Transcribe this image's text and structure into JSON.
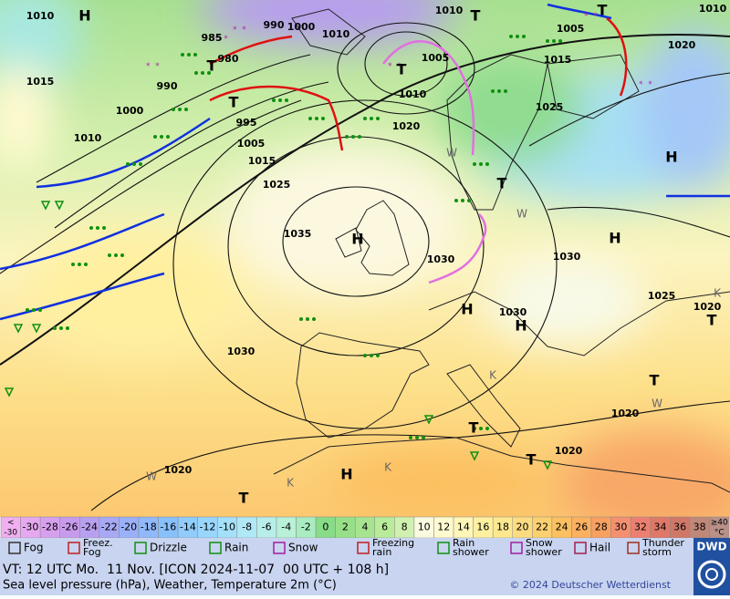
{
  "map": {
    "isobars": [
      1010,
      1010,
      1010,
      1005,
      985,
      990,
      1000,
      1010,
      980,
      990,
      1000,
      1015,
      1010,
      995,
      1005,
      1015,
      1025,
      1005,
      1010,
      1015,
      1020,
      1025,
      1020,
      1035,
      1030,
      1030,
      1025,
      1020,
      1030,
      1030,
      1020,
      1020,
      1020
    ],
    "centers": [
      "H",
      "H",
      "H",
      "H",
      "H",
      "H",
      "H",
      "T",
      "T",
      "T",
      "T",
      "T",
      "T",
      "T",
      "T",
      "T",
      "T",
      "T"
    ],
    "letters": [
      "W",
      "W",
      "K",
      "K",
      "K",
      "W",
      "W",
      "K"
    ]
  },
  "legend": {
    "colorbar": {
      "low": [
        "<",
        "-30"
      ],
      "high": [
        "≥40",
        "°C"
      ],
      "values": [
        -30,
        -28,
        -26,
        -24,
        -22,
        -20,
        -18,
        -16,
        -14,
        -12,
        -10,
        -8,
        -6,
        -4,
        -2,
        0,
        2,
        4,
        6,
        8,
        10,
        12,
        14,
        16,
        18,
        20,
        22,
        24,
        26,
        28,
        30,
        32,
        34,
        36,
        38
      ],
      "low_color": "#f0b0f0",
      "high_color": "#b89088",
      "colors": [
        "#e6a8f0",
        "#d7a0ee",
        "#c89aec",
        "#b8a0f0",
        "#a8a8f4",
        "#9ab0f8",
        "#90b8fa",
        "#88c0fc",
        "#90ccfc",
        "#98d6fc",
        "#a4e0fa",
        "#b0e8f6",
        "#b8eeea",
        "#b8f0d8",
        "#a8ecc0",
        "#88dc88",
        "#98e088",
        "#a8e490",
        "#b8ec98",
        "#d0f0b0",
        "#fafae0",
        "#fffad0",
        "#fff6b8",
        "#fff0a0",
        "#fde890",
        "#fcdc80",
        "#fcd070",
        "#fcc060",
        "#fcb060",
        "#f8a060",
        "#f49070",
        "#ec8070",
        "#e07868",
        "#d07868",
        "#c08878"
      ]
    },
    "weather": [
      [
        "Fog"
      ],
      [
        "Freez.",
        "Fog"
      ],
      [
        "Drizzle"
      ],
      [
        "Rain"
      ],
      [
        "Snow"
      ],
      [
        "Freezing",
        "rain"
      ],
      [
        "Rain",
        "shower"
      ],
      [
        "Snow",
        "shower"
      ],
      [
        "Hail"
      ],
      [
        "Thunder",
        "storm"
      ]
    ]
  },
  "footer": {
    "valid_time": "VT: 12 UTC Mo.  11 Nov. [ICON 2024-11-07  00 UTC + 108 h]",
    "description": "Sea level pressure (hPa), Weather, Temperature 2m (°C)",
    "copyright": "© 2024 Deutscher Wetterdienst",
    "logo": "DWD"
  }
}
